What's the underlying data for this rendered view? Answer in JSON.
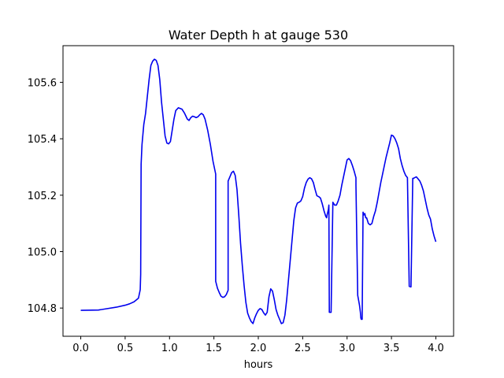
{
  "chart_data": {
    "type": "line",
    "title": "Water Depth h at gauge 530",
    "xlabel": "hours",
    "ylabel": "",
    "xlim": [
      -0.2,
      4.2
    ],
    "ylim": [
      104.7,
      105.73
    ],
    "xticks": [
      0.0,
      0.5,
      1.0,
      1.5,
      2.0,
      2.5,
      3.0,
      3.5,
      4.0
    ],
    "xtick_labels": [
      "0.0",
      "0.5",
      "1.0",
      "1.5",
      "2.0",
      "2.5",
      "3.0",
      "3.5",
      "4.0"
    ],
    "yticks": [
      104.8,
      105.0,
      105.2,
      105.4,
      105.6
    ],
    "ytick_labels": [
      "104.8",
      "105.0",
      "105.2",
      "105.4",
      "105.6"
    ],
    "grid": false,
    "colors": {
      "line": "#0000ee"
    },
    "series": [
      {
        "x": [
          0.0,
          0.2,
          0.3,
          0.4,
          0.5,
          0.55,
          0.6,
          0.65,
          0.67,
          0.675,
          0.68,
          0.69,
          0.71,
          0.73,
          0.75,
          0.77,
          0.79,
          0.81,
          0.83,
          0.85,
          0.87,
          0.89,
          0.91,
          0.93,
          0.95,
          0.97,
          0.99,
          1.01,
          1.03,
          1.05,
          1.07,
          1.1,
          1.14,
          1.17,
          1.2,
          1.22,
          1.24,
          1.26,
          1.28,
          1.3,
          1.32,
          1.34,
          1.36,
          1.38,
          1.4,
          1.43,
          1.46,
          1.49,
          1.52,
          1.52,
          1.54,
          1.56,
          1.58,
          1.6,
          1.62,
          1.64,
          1.66,
          1.66,
          1.68,
          1.7,
          1.72,
          1.74,
          1.76,
          1.78,
          1.8,
          1.82,
          1.84,
          1.86,
          1.88,
          1.9,
          1.92,
          1.94,
          1.96,
          1.98,
          2.0,
          2.02,
          2.04,
          2.06,
          2.08,
          2.1,
          2.12,
          2.14,
          2.16,
          2.18,
          2.2,
          2.22,
          2.24,
          2.26,
          2.28,
          2.3,
          2.32,
          2.34,
          2.36,
          2.38,
          2.4,
          2.42,
          2.44,
          2.46,
          2.48,
          2.5,
          2.52,
          2.54,
          2.56,
          2.58,
          2.6,
          2.62,
          2.64,
          2.66,
          2.68,
          2.7,
          2.72,
          2.74,
          2.76,
          2.77,
          2.775,
          2.79,
          2.795,
          2.8,
          2.82,
          2.84,
          2.86,
          2.88,
          2.9,
          2.92,
          2.94,
          2.96,
          2.98,
          3.0,
          3.02,
          3.04,
          3.06,
          3.08,
          3.1,
          3.1,
          3.12,
          3.14,
          3.15,
          3.155,
          3.16,
          3.17,
          3.18,
          3.19,
          3.2,
          3.21,
          3.22,
          3.23,
          3.24,
          3.26,
          3.28,
          3.3,
          3.32,
          3.34,
          3.36,
          3.38,
          3.4,
          3.42,
          3.44,
          3.46,
          3.48,
          3.5,
          3.52,
          3.54,
          3.56,
          3.58,
          3.6,
          3.62,
          3.64,
          3.66,
          3.68,
          3.7,
          3.7,
          3.72,
          3.74,
          3.74,
          3.76,
          3.78,
          3.8,
          3.82,
          3.84,
          3.86,
          3.88,
          3.9,
          3.92,
          3.94,
          3.96,
          3.98,
          4.0
        ],
        "y": [
          104.792,
          104.793,
          104.798,
          104.803,
          104.81,
          104.815,
          104.822,
          104.835,
          104.865,
          104.92,
          105.31,
          105.38,
          105.45,
          105.49,
          105.55,
          105.61,
          105.66,
          105.675,
          105.682,
          105.678,
          105.66,
          105.61,
          105.53,
          105.47,
          105.41,
          105.385,
          105.382,
          105.39,
          105.43,
          105.47,
          105.5,
          105.51,
          105.505,
          105.49,
          105.47,
          105.465,
          105.475,
          105.48,
          105.478,
          105.475,
          105.478,
          105.485,
          105.49,
          105.485,
          105.47,
          105.43,
          105.38,
          105.32,
          105.275,
          104.895,
          104.87,
          104.855,
          104.842,
          104.838,
          104.84,
          104.848,
          104.863,
          105.25,
          105.265,
          105.28,
          105.285,
          105.27,
          105.22,
          105.13,
          105.03,
          104.95,
          104.88,
          104.82,
          104.782,
          104.765,
          104.752,
          104.745,
          104.765,
          104.78,
          104.792,
          104.798,
          104.795,
          104.783,
          104.775,
          104.785,
          104.84,
          104.868,
          104.86,
          104.83,
          104.795,
          104.775,
          104.76,
          104.745,
          104.748,
          104.775,
          104.83,
          104.9,
          104.97,
          105.04,
          105.11,
          105.155,
          105.172,
          105.175,
          105.18,
          105.195,
          105.225,
          105.245,
          105.257,
          105.262,
          105.258,
          105.245,
          105.22,
          105.198,
          105.195,
          105.19,
          105.17,
          105.145,
          105.125,
          105.12,
          105.13,
          105.15,
          105.165,
          104.785,
          104.785,
          105.175,
          105.165,
          105.165,
          105.18,
          105.2,
          105.235,
          105.265,
          105.295,
          105.325,
          105.33,
          105.322,
          105.305,
          105.285,
          105.262,
          105.235,
          104.845,
          104.81,
          104.785,
          104.765,
          104.76,
          104.76,
          105.14,
          105.13,
          105.135,
          105.12,
          105.12,
          105.11,
          105.1,
          105.095,
          105.1,
          105.125,
          105.145,
          105.175,
          105.21,
          105.245,
          105.275,
          105.305,
          105.335,
          105.36,
          105.385,
          105.413,
          105.41,
          105.4,
          105.385,
          105.365,
          105.33,
          105.305,
          105.285,
          105.27,
          105.262,
          104.88,
          104.877,
          104.875,
          105.26,
          105.258,
          105.262,
          105.265,
          105.258,
          105.25,
          105.235,
          105.215,
          105.185,
          105.155,
          105.13,
          105.115,
          105.08,
          105.055,
          105.035
        ]
      }
    ]
  }
}
